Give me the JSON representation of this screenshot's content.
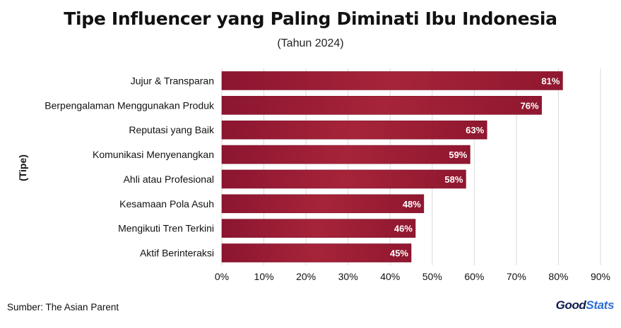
{
  "title": "Tipe Influencer yang Paling Diminati Ibu Indonesia",
  "subtitle": "(Tahun 2024)",
  "source": "Sumber: The Asian Parent",
  "brand": {
    "part1": "Good",
    "part2": "Stats"
  },
  "colors": {
    "bar": "#9c1a33",
    "bar_dark": "#7e1228",
    "grid": "#d9d9d9",
    "label": "#ffffff"
  },
  "chart_data": {
    "type": "bar",
    "orientation": "horizontal",
    "ylabel": "(Tipe)",
    "xlabel": "",
    "xlim": [
      0,
      90
    ],
    "x_ticks": [
      "0%",
      "10%",
      "20%",
      "30%",
      "40%",
      "50%",
      "60%",
      "70%",
      "80%",
      "90%"
    ],
    "grid": true,
    "categories": [
      "Jujur & Transparan",
      "Berpengalaman Menggunakan Produk",
      "Reputasi yang Baik",
      "Komunikasi Menyenangkan",
      "Ahli atau Profesional",
      "Kesamaan Pola Asuh",
      "Mengikuti Tren Terkini",
      "Aktif Berinteraksi"
    ],
    "values": [
      81,
      76,
      63,
      59,
      58,
      48,
      46,
      45
    ],
    "value_labels": [
      "81%",
      "76%",
      "63%",
      "59%",
      "58%",
      "48%",
      "46%",
      "45%"
    ]
  }
}
